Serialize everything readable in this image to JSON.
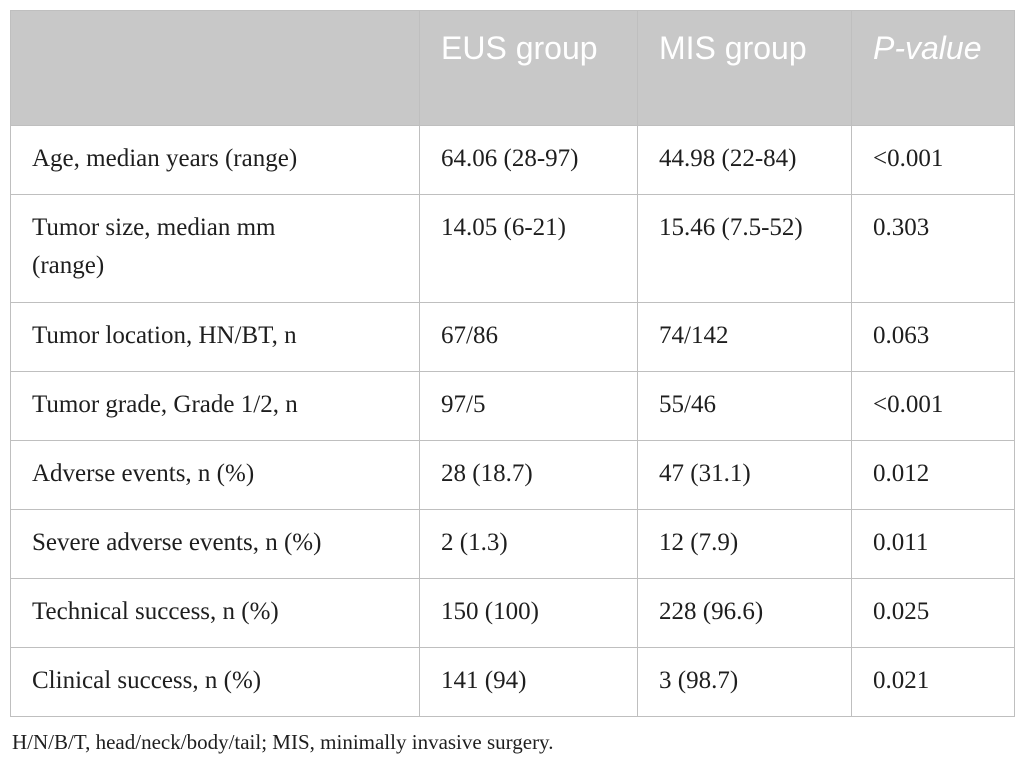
{
  "table": {
    "headers": [
      {
        "label": "",
        "italic": false
      },
      {
        "label": "EUS group",
        "italic": false
      },
      {
        "label": "MIS group",
        "italic": false
      },
      {
        "label": "P-value",
        "italic": true
      }
    ],
    "rows": [
      [
        "Age, median years (range)",
        "64.06 (28-97)",
        "44.98 (22-84)",
        "<0.001"
      ],
      [
        "Tumor size, median mm (range)",
        "14.05 (6-21)",
        "15.46 (7.5-52)",
        "0.303"
      ],
      [
        "Tumor location, HN/BT, n",
        "67/86",
        "74/142",
        "0.063"
      ],
      [
        "Tumor grade, Grade 1/2, n",
        "97/5",
        "55/46",
        "<0.001"
      ],
      [
        "Adverse events, n (%)",
        "28 (18.7)",
        "47 (31.1)",
        "0.012"
      ],
      [
        "Severe adverse events, n (%)",
        "2 (1.3)",
        "12 (7.9)",
        "0.011"
      ],
      [
        "Technical success, n (%)",
        "150 (100)",
        "228 (96.6)",
        "0.025"
      ],
      [
        "Clinical success, n (%)",
        "141 (94)",
        "3 (98.7)",
        "0.021"
      ]
    ]
  },
  "footnote": "H/N/B/T, head/neck/body/tail; MIS, minimally invasive surgery.",
  "colors": {
    "header_background": "#c8c8c8",
    "header_text": "#ffffff",
    "border": "#bfbfbf",
    "body_text": "#1e1e1e"
  }
}
